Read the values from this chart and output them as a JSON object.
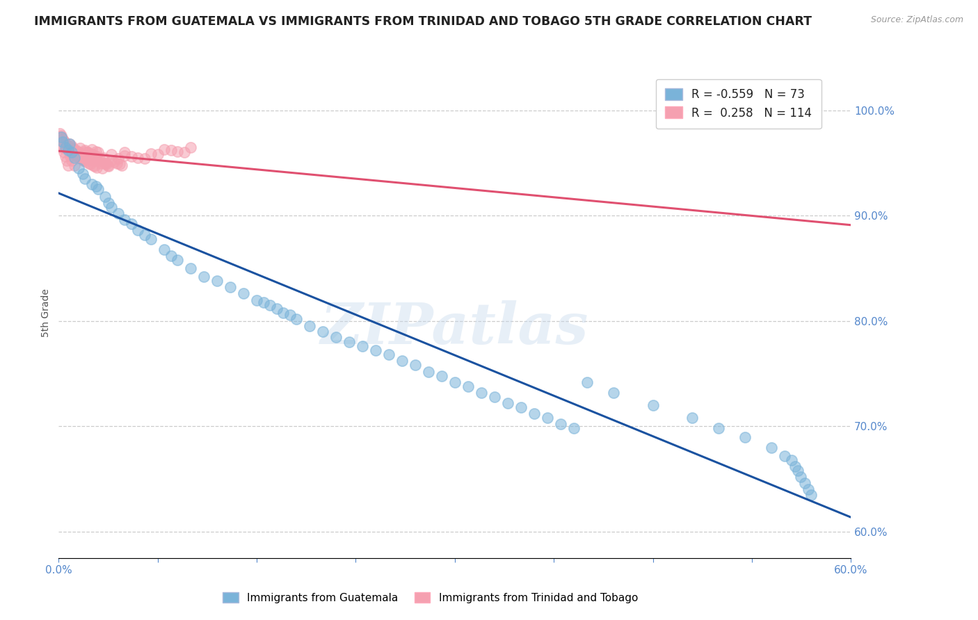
{
  "title": "IMMIGRANTS FROM GUATEMALA VS IMMIGRANTS FROM TRINIDAD AND TOBAGO 5TH GRADE CORRELATION CHART",
  "source": "Source: ZipAtlas.com",
  "ylabel": "5th Grade",
  "ylabel_right_ticks": [
    60.0,
    70.0,
    80.0,
    90.0,
    100.0
  ],
  "xmin": 0.0,
  "xmax": 0.6,
  "ymin": 0.575,
  "ymax": 1.04,
  "blue_R": -0.559,
  "blue_N": 73,
  "pink_R": 0.258,
  "pink_N": 114,
  "blue_color": "#7ab3d9",
  "pink_color": "#f5a0b0",
  "blue_line_color": "#1a52a0",
  "pink_line_color": "#e05070",
  "watermark": "ZIPatlas",
  "background_color": "#ffffff",
  "blue_scatter_x": [
    0.002,
    0.003,
    0.005,
    0.007,
    0.008,
    0.01,
    0.012,
    0.015,
    0.018,
    0.02,
    0.025,
    0.028,
    0.03,
    0.035,
    0.038,
    0.04,
    0.045,
    0.05,
    0.055,
    0.06,
    0.065,
    0.07,
    0.08,
    0.085,
    0.09,
    0.1,
    0.11,
    0.12,
    0.13,
    0.14,
    0.15,
    0.155,
    0.16,
    0.165,
    0.17,
    0.175,
    0.18,
    0.19,
    0.2,
    0.21,
    0.22,
    0.23,
    0.24,
    0.25,
    0.26,
    0.27,
    0.28,
    0.29,
    0.3,
    0.31,
    0.32,
    0.33,
    0.34,
    0.35,
    0.36,
    0.37,
    0.38,
    0.39,
    0.4,
    0.42,
    0.45,
    0.48,
    0.5,
    0.52,
    0.54,
    0.55,
    0.555,
    0.558,
    0.56,
    0.562,
    0.565,
    0.568,
    0.57
  ],
  "blue_scatter_y": [
    0.975,
    0.97,
    0.965,
    0.962,
    0.968,
    0.96,
    0.955,
    0.945,
    0.94,
    0.935,
    0.93,
    0.928,
    0.925,
    0.918,
    0.912,
    0.908,
    0.902,
    0.896,
    0.892,
    0.886,
    0.882,
    0.878,
    0.868,
    0.862,
    0.858,
    0.85,
    0.842,
    0.838,
    0.832,
    0.826,
    0.82,
    0.818,
    0.815,
    0.812,
    0.808,
    0.806,
    0.802,
    0.795,
    0.79,
    0.785,
    0.78,
    0.776,
    0.772,
    0.768,
    0.762,
    0.758,
    0.752,
    0.748,
    0.742,
    0.738,
    0.732,
    0.728,
    0.722,
    0.718,
    0.712,
    0.708,
    0.702,
    0.698,
    0.742,
    0.732,
    0.72,
    0.708,
    0.698,
    0.69,
    0.68,
    0.672,
    0.668,
    0.662,
    0.658,
    0.652,
    0.646,
    0.64,
    0.635
  ],
  "pink_scatter_x": [
    0.001,
    0.002,
    0.002,
    0.003,
    0.003,
    0.004,
    0.004,
    0.005,
    0.005,
    0.006,
    0.006,
    0.007,
    0.007,
    0.008,
    0.008,
    0.009,
    0.009,
    0.01,
    0.01,
    0.011,
    0.011,
    0.012,
    0.012,
    0.013,
    0.013,
    0.014,
    0.014,
    0.015,
    0.015,
    0.016,
    0.016,
    0.017,
    0.017,
    0.018,
    0.018,
    0.019,
    0.019,
    0.02,
    0.02,
    0.021,
    0.021,
    0.022,
    0.022,
    0.023,
    0.023,
    0.024,
    0.024,
    0.025,
    0.025,
    0.026,
    0.026,
    0.027,
    0.027,
    0.028,
    0.028,
    0.029,
    0.03,
    0.031,
    0.032,
    0.033,
    0.034,
    0.035,
    0.036,
    0.037,
    0.038,
    0.04,
    0.042,
    0.044,
    0.046,
    0.048,
    0.05,
    0.055,
    0.06,
    0.065,
    0.07,
    0.075,
    0.08,
    0.085,
    0.09,
    0.095,
    0.1,
    0.001,
    0.002,
    0.003,
    0.004,
    0.005,
    0.006,
    0.007,
    0.008,
    0.009,
    0.01,
    0.012,
    0.015,
    0.018,
    0.02,
    0.025,
    0.03,
    0.035,
    0.04,
    0.045,
    0.05,
    0.001,
    0.003,
    0.005,
    0.007,
    0.009,
    0.011,
    0.013,
    0.015,
    0.017,
    0.02,
    0.022,
    0.025,
    0.028
  ],
  "pink_scatter_y": [
    0.978,
    0.976,
    0.974,
    0.973,
    0.972,
    0.971,
    0.97,
    0.969,
    0.968,
    0.967,
    0.966,
    0.965,
    0.964,
    0.963,
    0.968,
    0.962,
    0.961,
    0.966,
    0.965,
    0.96,
    0.959,
    0.958,
    0.963,
    0.957,
    0.962,
    0.956,
    0.961,
    0.96,
    0.955,
    0.964,
    0.959,
    0.954,
    0.959,
    0.953,
    0.958,
    0.952,
    0.957,
    0.961,
    0.956,
    0.951,
    0.956,
    0.955,
    0.96,
    0.95,
    0.955,
    0.949,
    0.954,
    0.963,
    0.958,
    0.948,
    0.953,
    0.947,
    0.952,
    0.961,
    0.956,
    0.946,
    0.96,
    0.955,
    0.95,
    0.945,
    0.955,
    0.95,
    0.949,
    0.948,
    0.947,
    0.952,
    0.951,
    0.95,
    0.949,
    0.948,
    0.957,
    0.956,
    0.955,
    0.954,
    0.959,
    0.958,
    0.963,
    0.962,
    0.961,
    0.96,
    0.965,
    0.972,
    0.968,
    0.964,
    0.96,
    0.956,
    0.952,
    0.948,
    0.96,
    0.956,
    0.952,
    0.948,
    0.96,
    0.956,
    0.952,
    0.958,
    0.954,
    0.95,
    0.958,
    0.954,
    0.96,
    0.975,
    0.97,
    0.968,
    0.966,
    0.964,
    0.962,
    0.96,
    0.958,
    0.956,
    0.962,
    0.96,
    0.958,
    0.956
  ]
}
